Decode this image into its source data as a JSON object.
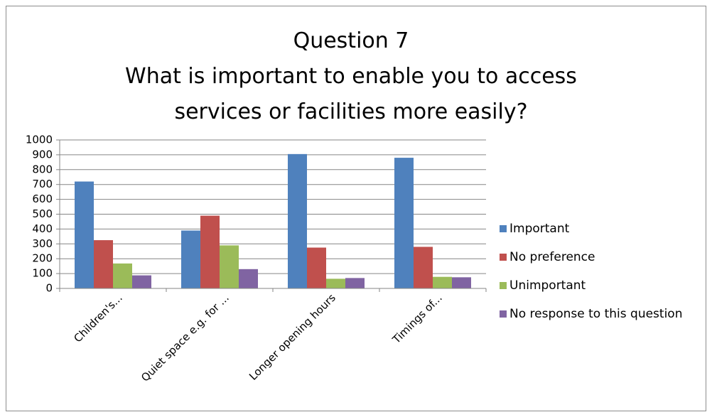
{
  "chart_data": {
    "type": "bar",
    "title_lines": [
      "Question 7",
      "What is important to enable you to access",
      "services or facilities more easily?"
    ],
    "categories": [
      "Children's...",
      "Quiet space e.g. for ...",
      "Longer opening hours",
      "Timings of..."
    ],
    "series": [
      {
        "name": "Important",
        "color": "#4f81bd",
        "values": [
          720,
          390,
          905,
          880
        ]
      },
      {
        "name": "No preference",
        "color": "#c0504d",
        "values": [
          325,
          490,
          275,
          280
        ]
      },
      {
        "name": "Unimportant",
        "color": "#9bbb59",
        "values": [
          168,
          290,
          65,
          78
        ]
      },
      {
        "name": "No response to this question",
        "color": "#8064a2",
        "values": [
          88,
          130,
          70,
          75
        ]
      }
    ],
    "ylim": [
      0,
      1000
    ],
    "yticks": [
      0,
      100,
      200,
      300,
      400,
      500,
      600,
      700,
      800,
      900,
      1000
    ],
    "grid": true,
    "legend_position": "right",
    "xlabel": "",
    "ylabel": ""
  }
}
